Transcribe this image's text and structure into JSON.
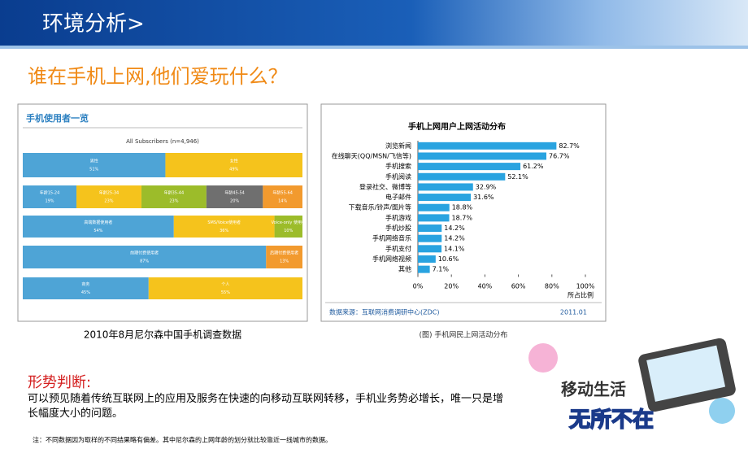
{
  "header": {
    "title": "环境分析>"
  },
  "subtitle": "谁在手机上网,他们爱玩什么？",
  "left_chart": {
    "type": "stacked-bar",
    "title": "手机使用者一览",
    "subtitle": "All Subscribers (n=4,946)",
    "caption": "2010年8月尼尔森中国手机调查数据",
    "rows": [
      [
        {
          "label": "男性",
          "value": 51,
          "value_label": "51%",
          "color": "#4ea4d6"
        },
        {
          "label": "女性",
          "value": 49,
          "value_label": "49%",
          "color": "#f5c31c"
        }
      ],
      [
        {
          "label": "年龄15-24",
          "value": 19,
          "value_label": "19%",
          "color": "#4ea4d6"
        },
        {
          "label": "年龄25-34",
          "value": 23,
          "value_label": "23%",
          "color": "#f5c31c"
        },
        {
          "label": "年龄35-44",
          "value": 23,
          "value_label": "23%",
          "color": "#9cbc2a"
        },
        {
          "label": "年龄45-54",
          "value": 20,
          "value_label": "20%",
          "color": "#6f6f6f"
        },
        {
          "label": "年龄55-64",
          "value": 14,
          "value_label": "14%",
          "color": "#f29a2e"
        }
      ],
      [
        {
          "label": "高端数据使用者",
          "value": 54,
          "value_label": "54%",
          "color": "#4ea4d6"
        },
        {
          "label": "SMS/Voice使用者",
          "value": 36,
          "value_label": "36%",
          "color": "#f5c31c"
        },
        {
          "label": "Voice-only 使用者",
          "value": 10,
          "value_label": "10%",
          "color": "#9cbc2a"
        }
      ],
      [
        {
          "label": "前期付费使用者",
          "value": 87,
          "value_label": "87%",
          "color": "#4ea4d6"
        },
        {
          "label": "后期付费使用者",
          "value": 13,
          "value_label": "13%",
          "color": "#f29a2e"
        }
      ],
      [
        {
          "label": "商务",
          "value": 45,
          "value_label": "45%",
          "color": "#4ea4d6"
        },
        {
          "label": "个人",
          "value": 55,
          "value_label": "55%",
          "color": "#f5c31c"
        }
      ]
    ]
  },
  "right_chart": {
    "type": "hbar",
    "title": "手机上网用户上网活动分布",
    "categories": [
      "浏览新闻",
      "在线聊天(QQ/MSN/飞信等)",
      "手机搜索",
      "手机阅读",
      "登录社交、微博等",
      "电子邮件",
      "下载音乐/铃声/图片等",
      "手机游戏",
      "手机炒股",
      "手机网络音乐",
      "手机支付",
      "手机网络视频",
      "其他"
    ],
    "values": [
      82.7,
      76.7,
      61.2,
      52.1,
      32.9,
      31.6,
      18.8,
      18.7,
      14.2,
      14.2,
      14.1,
      10.6,
      7.1
    ],
    "value_labels": [
      "82.7%",
      "76.7%",
      "61.2%",
      "52.1%",
      "32.9%",
      "31.6%",
      "18.8%",
      "18.7%",
      "14.2%",
      "14.2%",
      "14.1%",
      "10.6%",
      "7.1%"
    ],
    "color": "#29a3e0",
    "xlim": [
      0,
      100
    ],
    "xticks": [
      {
        "value": 0,
        "label": "0%"
      },
      {
        "value": 20,
        "label": "20%"
      },
      {
        "value": 40,
        "label": "40%"
      },
      {
        "value": 60,
        "label": "60%"
      },
      {
        "value": 80,
        "label": "80%"
      },
      {
        "value": 100,
        "label": "100%"
      }
    ],
    "xlabel": "所占比例",
    "source": "数据来源：互联网消费调研中心(ZDC)",
    "date": "2011.01",
    "caption": "(图) 手机网民上网活动分布"
  },
  "judgement": {
    "heading": "形势判断:",
    "text": "可以预见随着传统互联网上的应用及服务在快速的向移动互联网转移，手机业务势必增长，唯一只是增长幅度大小的问题。"
  },
  "note": "注：不同数据因为取样的不同结果略有偏差。其中尼尔森的上网年龄的划分就比较靠近一线城市的数据。",
  "badge": {
    "line1": "移动生活",
    "line2": "无所不在"
  }
}
